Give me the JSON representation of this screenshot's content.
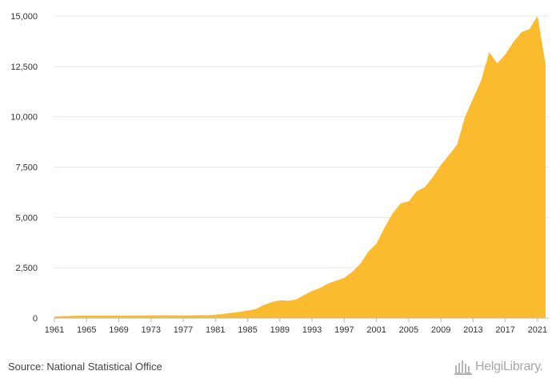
{
  "source_text": "Source: National Statistical Office",
  "brand": {
    "name": "HelgiLibrary.",
    "icon": "helgi-library-logo-icon"
  },
  "colors": {
    "area": "#fabb2f",
    "grid": "#e6e6e6",
    "axis": "#bbbbbb"
  },
  "chart_data": {
    "type": "area",
    "title": "",
    "xlabel": "",
    "ylabel": "",
    "x": [
      1961,
      1962,
      1963,
      1964,
      1965,
      1966,
      1967,
      1968,
      1969,
      1970,
      1971,
      1972,
      1973,
      1974,
      1975,
      1976,
      1977,
      1978,
      1979,
      1980,
      1981,
      1982,
      1983,
      1984,
      1985,
      1986,
      1987,
      1988,
      1989,
      1990,
      1991,
      1992,
      1993,
      1994,
      1995,
      1996,
      1997,
      1998,
      1999,
      2000,
      2001,
      2002,
      2003,
      2004,
      2005,
      2006,
      2007,
      2008,
      2009,
      2010,
      2011,
      2012,
      2013,
      2014,
      2015,
      2016,
      2017,
      2018,
      2019,
      2020,
      2021,
      2022
    ],
    "series": [
      {
        "values": [
          80,
          100,
          110,
          120,
          125,
          125,
          125,
          130,
          125,
          125,
          130,
          130,
          135,
          140,
          140,
          135,
          130,
          135,
          145,
          140,
          170,
          210,
          260,
          310,
          380,
          450,
          650,
          800,
          880,
          860,
          920,
          1150,
          1350,
          1500,
          1720,
          1860,
          2000,
          2300,
          2700,
          3300,
          3700,
          4500,
          5200,
          5700,
          5800,
          6300,
          6500,
          7000,
          7600,
          8100,
          8600,
          10000,
          10900,
          11800,
          13200,
          12650,
          13100,
          13700,
          14200,
          14350,
          15000,
          12600
        ]
      }
    ],
    "ylim": [
      0,
      15000
    ],
    "yticks": [
      "0",
      "2,500",
      "5,000",
      "7,500",
      "10,000",
      "12,500",
      "15,000"
    ],
    "ytick_values": [
      0,
      2500,
      5000,
      7500,
      10000,
      12500,
      15000
    ],
    "xticks": [
      "1961",
      "1965",
      "1969",
      "1973",
      "1977",
      "1981",
      "1985",
      "1989",
      "1993",
      "1997",
      "2001",
      "2005",
      "2009",
      "2013",
      "2017",
      "2021"
    ],
    "grid": true,
    "legend": "none"
  }
}
